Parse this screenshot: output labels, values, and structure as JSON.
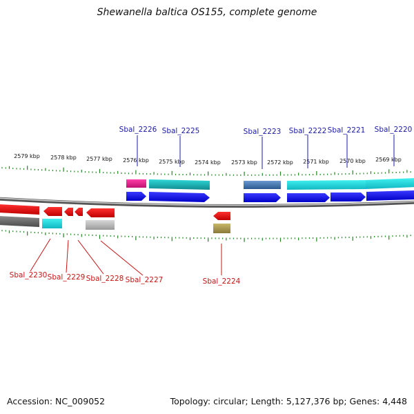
{
  "title": "Shewanella baltica OS155, complete genome",
  "footer": {
    "accession": "Accession: NC_009052",
    "topology": "Topology: circular; Length: 5,127,376 bp; Genes: 4,448"
  },
  "kbp_ticks": [
    "2579 kbp",
    "2578 kbp",
    "2577 kbp",
    "2576 kbp",
    "2575 kbp",
    "2574 kbp",
    "2573 kbp",
    "2572 kbp",
    "2571 kbp",
    "2570 kbp",
    "2569 kbp"
  ],
  "top_genes": [
    "Sbal_2226",
    "Sbal_2225",
    "Sbal_2223",
    "Sbal_2222",
    "Sbal_2221",
    "Sbal_2220"
  ],
  "bottom_genes": [
    "Sbal_2230",
    "Sbal_2229",
    "Sbal_2228",
    "Sbal_2227",
    "Sbal_2224"
  ],
  "colors": {
    "forward_cds": "#1010ee",
    "reverse_cds": "#e81010",
    "tick": "#1a8a1a",
    "top_label": "#1a1aa6",
    "bottom_label": "#c81414",
    "backbone": "#8a8a8a",
    "cog_magenta": "#e0208a",
    "cog_cyan": "#20d8e0",
    "cog_steel": "#4a7ab0",
    "cog_gray": "#6a6a6a",
    "cog_olive": "#b0a050",
    "cog_lightgray": "#b8b8b8"
  }
}
